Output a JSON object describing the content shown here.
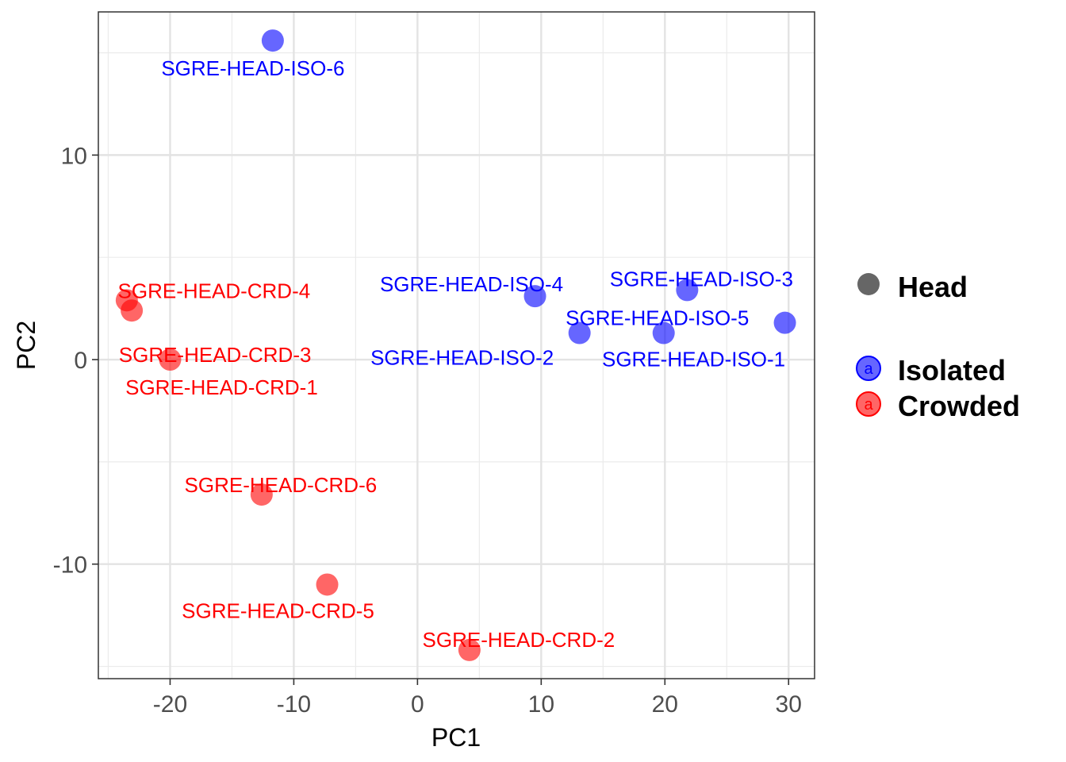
{
  "chart_data": {
    "type": "scatter",
    "title": "",
    "xlabel": "PC1",
    "ylabel": "PC2",
    "xlim": [
      -25.8,
      32.1
    ],
    "ylim": [
      -15.6,
      17.0
    ],
    "xticks": [
      -20,
      -10,
      0,
      10,
      20,
      30
    ],
    "xtick_labels": [
      "-20",
      "-10",
      "0",
      "10",
      "20",
      "30"
    ],
    "yticks": [
      -10,
      0,
      10
    ],
    "ytick_labels": [
      "-10",
      "0",
      "10"
    ],
    "grid": true,
    "legend_position": "right",
    "shape_legend": {
      "label": "Head",
      "color": "#666666"
    },
    "series": [
      {
        "name": "Isolated",
        "color": "#0000ff",
        "key_text": "a",
        "points": [
          {
            "x": 29.7,
            "y": 1.8,
            "label": "SGRE-HEAD-ISO-1"
          },
          {
            "x": 13.1,
            "y": 1.3,
            "label": "SGRE-HEAD-ISO-2"
          },
          {
            "x": 21.8,
            "y": 3.4,
            "label": "SGRE-HEAD-ISO-3"
          },
          {
            "x": 9.5,
            "y": 3.1,
            "label": "SGRE-HEAD-ISO-4"
          },
          {
            "x": 19.9,
            "y": 1.3,
            "label": "SGRE-HEAD-ISO-5"
          },
          {
            "x": -11.7,
            "y": 15.6,
            "label": "SGRE-HEAD-ISO-6"
          }
        ]
      },
      {
        "name": "Crowded",
        "color": "#ff0000",
        "key_text": "a",
        "points": [
          {
            "x": -20.0,
            "y": 0.0,
            "label": "SGRE-HEAD-CRD-1"
          },
          {
            "x": 4.2,
            "y": -14.2,
            "label": "SGRE-HEAD-CRD-2"
          },
          {
            "x": -23.1,
            "y": 2.4,
            "label": "SGRE-HEAD-CRD-3"
          },
          {
            "x": -23.5,
            "y": 2.9,
            "label": "SGRE-HEAD-CRD-4"
          },
          {
            "x": -7.3,
            "y": -11.0,
            "label": "SGRE-HEAD-CRD-5"
          },
          {
            "x": -12.6,
            "y": -6.6,
            "label": "SGRE-HEAD-CRD-6"
          }
        ]
      }
    ]
  }
}
